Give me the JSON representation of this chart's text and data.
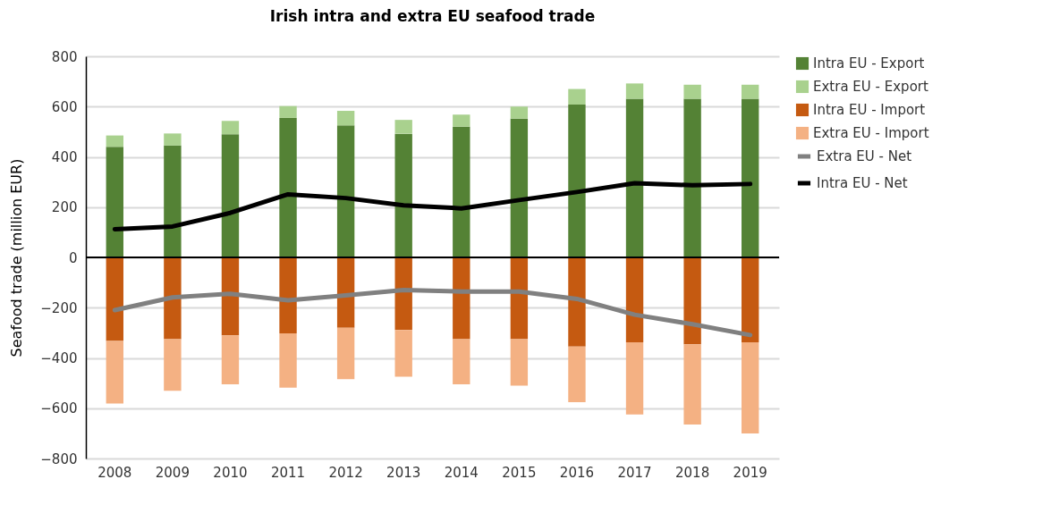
{
  "chart_data": {
    "type": "bar",
    "title": "Irish intra and extra EU seafood trade",
    "ylabel": "Seafood trade (million EUR)",
    "categories": [
      "2008",
      "2009",
      "2010",
      "2011",
      "2012",
      "2013",
      "2014",
      "2015",
      "2016",
      "2017",
      "2018",
      "2019"
    ],
    "stacked": true,
    "series": [
      {
        "name": "Intra EU - Export",
        "color": "#548235",
        "values": [
          440,
          445,
          490,
          555,
          525,
          492,
          520,
          552,
          608,
          631,
          631,
          631
        ]
      },
      {
        "name": "Extra EU - Export",
        "color": "#a9d18e",
        "values": [
          45,
          48,
          53,
          47,
          58,
          55,
          48,
          48,
          62,
          61,
          56,
          56
        ]
      },
      {
        "name": "Intra EU - Import",
        "color": "#c55a11",
        "values": [
          -332,
          -325,
          -310,
          -302,
          -280,
          -289,
          -325,
          -325,
          -355,
          -338,
          -346,
          -338
        ]
      },
      {
        "name": "Extra EU - Import",
        "color": "#f4b183",
        "values": [
          -249,
          -206,
          -195,
          -216,
          -204,
          -186,
          -180,
          -185,
          -221,
          -287,
          -319,
          -362
        ]
      },
      {
        "name": "Extra EU - Net",
        "type": "line",
        "color": "#808080",
        "values": [
          -210,
          -159,
          -145,
          -171,
          -151,
          -130,
          -136,
          -136,
          -165,
          -228,
          -266,
          -309
        ]
      },
      {
        "name": "Intra EU - Net",
        "type": "line",
        "color": "#000000",
        "values": [
          112,
          123,
          177,
          251,
          236,
          207,
          195,
          228,
          260,
          295,
          287,
          292
        ]
      }
    ],
    "ylim": [
      -800,
      800
    ],
    "yticks": [
      -800,
      -600,
      -400,
      -200,
      0,
      200,
      400,
      600,
      800
    ],
    "ref_lines": [
      {
        "axis": "y",
        "value": 0,
        "color": "#000000"
      }
    ],
    "grid": "y",
    "legend": "right",
    "marker": "none",
    "line_style": "solid"
  }
}
